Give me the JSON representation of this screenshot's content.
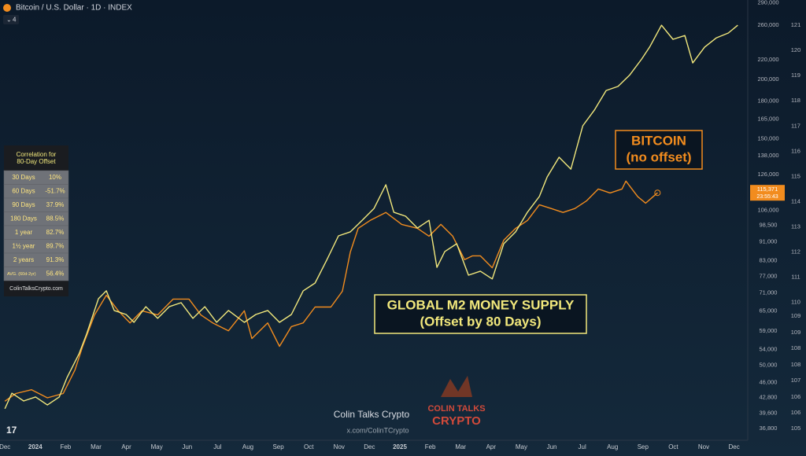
{
  "header": {
    "title": "Bitcoin / U.S. Dollar · 1D · INDEX",
    "indicator_count": "4"
  },
  "chart_data": {
    "type": "line",
    "xlim": [
      -0.16,
      24.45
    ],
    "xticks": [
      {
        "value": 0,
        "label": "Dec"
      },
      {
        "value": 1,
        "label": "2024"
      },
      {
        "value": 2,
        "label": "Feb"
      },
      {
        "value": 3,
        "label": "Mar"
      },
      {
        "value": 4,
        "label": "Apr"
      },
      {
        "value": 5,
        "label": "May"
      },
      {
        "value": 6,
        "label": "Jun"
      },
      {
        "value": 7,
        "label": "Jul"
      },
      {
        "value": 8,
        "label": "Aug"
      },
      {
        "value": 9,
        "label": "Sep"
      },
      {
        "value": 10,
        "label": "Oct"
      },
      {
        "value": 11,
        "label": "Nov"
      },
      {
        "value": 12,
        "label": "Dec"
      },
      {
        "value": 13,
        "label": "2025"
      },
      {
        "value": 14,
        "label": "Feb"
      },
      {
        "value": 15,
        "label": "Mar"
      },
      {
        "value": 16,
        "label": "Apr"
      },
      {
        "value": 17,
        "label": "May"
      },
      {
        "value": 18,
        "label": "Jun"
      },
      {
        "value": 19,
        "label": "Jul"
      },
      {
        "value": 20,
        "label": "Aug"
      },
      {
        "value": 21,
        "label": "Sep"
      },
      {
        "value": 22,
        "label": "Oct"
      },
      {
        "value": 23,
        "label": "Nov"
      },
      {
        "value": 24,
        "label": "Dec"
      }
    ],
    "log_y": true,
    "ylim": [
      34750,
      293800
    ],
    "yticks": [
      {
        "value": 290000,
        "label": "290,000"
      },
      {
        "value": 260000,
        "label": "260,000"
      },
      {
        "value": 220000,
        "label": "220,000"
      },
      {
        "value": 200000,
        "label": "200,000"
      },
      {
        "value": 180000,
        "label": "180,000"
      },
      {
        "value": 165000,
        "label": "165,000"
      },
      {
        "value": 150000,
        "label": "150,000"
      },
      {
        "value": 138000,
        "label": "138,000"
      },
      {
        "value": 126000,
        "label": "126,000"
      },
      {
        "value": 106000,
        "label": "106,000"
      },
      {
        "value": 98500,
        "label": "98,500"
      },
      {
        "value": 91000,
        "label": "91,000"
      },
      {
        "value": 83000,
        "label": "83,000"
      },
      {
        "value": 77000,
        "label": "77,000"
      },
      {
        "value": 71000,
        "label": "71,000"
      },
      {
        "value": 65000,
        "label": "65,000"
      },
      {
        "value": 59000,
        "label": "59,000"
      },
      {
        "value": 54000,
        "label": "54,000"
      },
      {
        "value": 50000,
        "label": "50,000"
      },
      {
        "value": 46000,
        "label": "46,000"
      },
      {
        "value": 42800,
        "label": "42,800"
      },
      {
        "value": 39600,
        "label": "39,600"
      },
      {
        "value": 36800,
        "label": "36,800"
      }
    ],
    "y2lim": [
      104.53,
      122.0
    ],
    "y2ticks": [
      121,
      120,
      119,
      118,
      117,
      116,
      115,
      114,
      113,
      112,
      111,
      110,
      {
        "value": 109.46,
        "label": "109"
      },
      {
        "value": 108.8,
        "label": "109"
      },
      {
        "value": 108.18,
        "label": "108"
      },
      {
        "value": 107.53,
        "label": "108"
      },
      {
        "value": 106.9,
        "label": "107"
      },
      {
        "value": 106.25,
        "label": "106"
      },
      {
        "value": 105.62,
        "label": "106"
      },
      105
    ],
    "grid": false,
    "series": [
      {
        "color": "#f28c1e",
        "axis": "y",
        "x": [
          0,
          0.36,
          0.88,
          1.4,
          1.92,
          2.31,
          2.56,
          2.95,
          3.34,
          3.73,
          4.12,
          4.51,
          5.03,
          5.54,
          6.06,
          6.45,
          6.84,
          7.36,
          7.88,
          8.13,
          8.65,
          9.04,
          9.43,
          9.82,
          10.21,
          10.73,
          11.11,
          11.37,
          11.63,
          12.02,
          12.54,
          13.06,
          13.58,
          13.96,
          14.35,
          14.74,
          15.13,
          15.39,
          15.65,
          16.04,
          16.42,
          16.81,
          17.2,
          17.59,
          17.98,
          18.37,
          18.76,
          19.15,
          19.53,
          19.92,
          20.31,
          20.44,
          20.83,
          21.09,
          21.48
        ],
        "values": [
          42000,
          43600,
          44400,
          42700,
          43600,
          48900,
          54800,
          63800,
          70200,
          65100,
          61400,
          65100,
          63800,
          68900,
          68900,
          63800,
          61400,
          59100,
          65100,
          56900,
          61400,
          54800,
          60300,
          61400,
          66300,
          66300,
          71600,
          86600,
          97100,
          100900,
          104900,
          99000,
          97100,
          93500,
          99000,
          93500,
          83400,
          85000,
          85000,
          80200,
          91700,
          97100,
          100900,
          108900,
          106900,
          104900,
          106900,
          111000,
          117500,
          115300,
          117500,
          122100,
          113200,
          109700,
          115371
        ],
        "value_labels": [
          null,
          null,
          null,
          null,
          null,
          null,
          null,
          null,
          null,
          null,
          null,
          null,
          null,
          null,
          null,
          null,
          null,
          null,
          null,
          null,
          null,
          null,
          null,
          null,
          null,
          null,
          null,
          null,
          null,
          null,
          null,
          null,
          null,
          null,
          null,
          null,
          null,
          null,
          null,
          null,
          null,
          null,
          null,
          null,
          null,
          null,
          null,
          null,
          null,
          null,
          null,
          null,
          null,
          null,
          "115,371"
        ]
      },
      {
        "color": "#f2e87c",
        "axis": "y2",
        "x": [
          0,
          0.23,
          0.62,
          1.01,
          1.4,
          1.79,
          2.05,
          2.44,
          2.69,
          3.08,
          3.34,
          3.6,
          3.99,
          4.25,
          4.64,
          5.03,
          5.41,
          5.8,
          6.19,
          6.58,
          6.97,
          7.36,
          7.88,
          8.26,
          8.65,
          9.04,
          9.43,
          9.82,
          10.21,
          10.6,
          10.98,
          11.37,
          11.76,
          12.15,
          12.54,
          12.8,
          13.19,
          13.58,
          13.96,
          14.22,
          14.48,
          14.87,
          15.26,
          15.65,
          16.04,
          16.42,
          16.81,
          17.2,
          17.59,
          17.85,
          18.24,
          18.63,
          19.02,
          19.4,
          19.79,
          20.18,
          20.57,
          20.96,
          21.22,
          21.61,
          21.99,
          22.38,
          22.64,
          23.03,
          23.42,
          23.81,
          24.12
        ],
        "values": [
          105.78,
          106.4,
          106.09,
          106.25,
          105.93,
          106.25,
          107.03,
          107.96,
          108.74,
          110.15,
          110.46,
          109.68,
          109.52,
          109.21,
          109.83,
          109.37,
          109.83,
          109.99,
          109.37,
          109.83,
          109.21,
          109.68,
          109.21,
          109.52,
          109.68,
          109.21,
          109.52,
          110.46,
          110.77,
          111.7,
          112.64,
          112.8,
          113.26,
          113.73,
          114.67,
          113.58,
          113.42,
          112.95,
          113.26,
          111.39,
          112.02,
          112.33,
          111.08,
          111.24,
          110.93,
          112.33,
          112.8,
          113.58,
          114.2,
          114.98,
          115.76,
          115.29,
          117.01,
          117.63,
          118.41,
          118.57,
          119.03,
          119.66,
          120.13,
          121.0,
          120.44,
          120.59,
          119.5,
          120.13,
          120.5,
          120.69,
          121.0
        ]
      }
    ],
    "countdown": "23:55:43",
    "annotations": [
      {
        "lines": [
          "BITCOIN",
          "(no offset)"
        ],
        "color": "#f28c1e"
      },
      {
        "lines": [
          "GLOBAL M2 MONEY SUPPLY",
          "(Offset by 80 Days)"
        ],
        "color": "#f2e87c"
      }
    ]
  },
  "correlation": {
    "title": [
      "Correlation for",
      "80-Day Offset"
    ],
    "rows": [
      [
        "30 Days",
        "10%"
      ],
      [
        "60 Days",
        "-51.7%"
      ],
      [
        "90 Days",
        "37.9%"
      ],
      [
        "180 Days",
        "88.5%"
      ],
      [
        "1 year",
        "82.7%"
      ],
      [
        "1½ year",
        "89.7%"
      ],
      [
        "2 years",
        "91.3%"
      ],
      [
        "AVG. (60d-2yr)",
        "56.4%"
      ]
    ],
    "footer": "ColinTalksCrypto.com"
  },
  "watermark": {
    "name": "Colin Talks Crypto",
    "handle": "x.com/ColinTCrypto",
    "logo": [
      "COLIN TALKS",
      "CRYPTO"
    ]
  }
}
